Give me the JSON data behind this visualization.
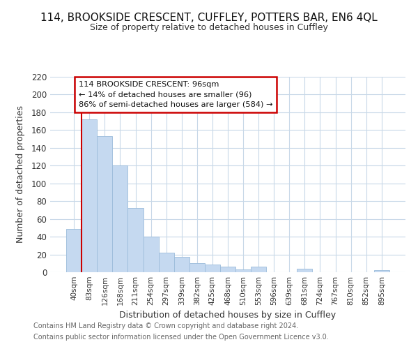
{
  "title": "114, BROOKSIDE CRESCENT, CUFFLEY, POTTERS BAR, EN6 4QL",
  "subtitle": "Size of property relative to detached houses in Cuffley",
  "xlabel": "Distribution of detached houses by size in Cuffley",
  "ylabel": "Number of detached properties",
  "bar_color": "#c5d9f0",
  "bar_edge_color": "#9bbcdb",
  "vline_color": "#cc0000",
  "categories": [
    "40sqm",
    "83sqm",
    "126sqm",
    "168sqm",
    "211sqm",
    "254sqm",
    "297sqm",
    "339sqm",
    "382sqm",
    "425sqm",
    "468sqm",
    "510sqm",
    "553sqm",
    "596sqm",
    "639sqm",
    "681sqm",
    "724sqm",
    "767sqm",
    "810sqm",
    "852sqm",
    "895sqm"
  ],
  "values": [
    49,
    172,
    153,
    120,
    72,
    40,
    22,
    17,
    10,
    9,
    6,
    3,
    6,
    0,
    0,
    4,
    0,
    0,
    0,
    0,
    2
  ],
  "ylim": [
    0,
    220
  ],
  "yticks": [
    0,
    20,
    40,
    60,
    80,
    100,
    120,
    140,
    160,
    180,
    200,
    220
  ],
  "annotation_title": "114 BROOKSIDE CRESCENT: 96sqm",
  "annotation_line1": "← 14% of detached houses are smaller (96)",
  "annotation_line2": "86% of semi-detached houses are larger (584) →",
  "footer1": "Contains HM Land Registry data © Crown copyright and database right 2024.",
  "footer2": "Contains public sector information licensed under the Open Government Licence v3.0.",
  "background_color": "#ffffff",
  "grid_color": "#c8d8e8"
}
